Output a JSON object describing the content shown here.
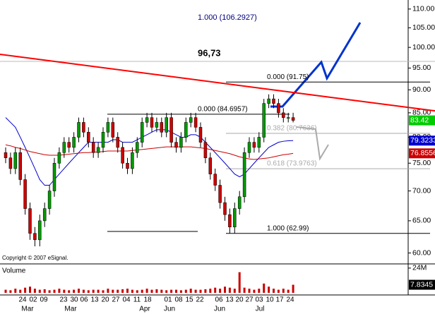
{
  "chart_data": {
    "type": "candlestick",
    "log_scale": true,
    "ylim": [
      58.6,
      112.5
    ],
    "yticks": [
      {
        "value": 110,
        "label": "110.00"
      },
      {
        "value": 105,
        "label": "105.00"
      },
      {
        "value": 100,
        "label": "100.00"
      },
      {
        "value": 95,
        "label": "95.00"
      },
      {
        "value": 90,
        "label": "90.00"
      },
      {
        "value": 85,
        "label": "85.00"
      },
      {
        "value": 80,
        "label": "80.00"
      },
      {
        "value": 75,
        "label": "75.00"
      },
      {
        "value": 70,
        "label": "70.00"
      },
      {
        "value": 65,
        "label": "65.00"
      },
      {
        "value": 60,
        "label": "60.00"
      }
    ],
    "up_color": "#009900",
    "down_color": "#cc0000",
    "open": [
      77,
      76,
      74,
      77,
      72,
      67,
      63,
      62,
      65,
      67,
      70,
      75,
      77,
      79,
      78,
      80,
      83,
      81,
      79,
      77,
      78,
      81,
      83,
      80,
      78,
      75,
      74,
      77,
      79,
      83,
      84,
      82,
      83,
      81,
      84,
      79,
      78,
      80,
      83,
      84,
      82,
      79,
      76,
      73,
      71,
      68,
      66,
      64,
      67,
      69,
      77,
      79,
      78,
      80,
      87,
      88,
      87,
      85,
      84,
      84
    ],
    "high": [
      78,
      77,
      78,
      78,
      73,
      68,
      64,
      66,
      68,
      71,
      76,
      78,
      80,
      80,
      81,
      84,
      84,
      82,
      80,
      79,
      82,
      84,
      84,
      81,
      79,
      76,
      78,
      80,
      84,
      85,
      85,
      84,
      84,
      85,
      85,
      80,
      81,
      84,
      85,
      85,
      83,
      80,
      77,
      74,
      72,
      69,
      67,
      68,
      70,
      78,
      80,
      80,
      81,
      88,
      89,
      89,
      88,
      86,
      85,
      85
    ],
    "low": [
      75,
      73,
      73,
      71,
      66,
      62,
      61,
      61,
      64,
      66,
      69,
      74,
      76,
      77,
      77,
      79,
      80,
      78,
      76,
      76,
      77,
      80,
      79,
      77,
      74,
      73,
      73,
      76,
      78,
      82,
      81,
      81,
      80,
      80,
      78,
      77,
      77,
      79,
      82,
      81,
      78,
      75,
      72,
      70,
      67,
      65,
      63,
      63,
      66,
      68,
      76,
      77,
      77,
      79,
      86,
      86,
      84,
      83,
      83,
      83
    ],
    "close": [
      76,
      74,
      77,
      72,
      67,
      63,
      62,
      65,
      67,
      70,
      75,
      77,
      79,
      78,
      80,
      83,
      81,
      79,
      77,
      78,
      81,
      83,
      80,
      78,
      75,
      74,
      77,
      79,
      83,
      84,
      82,
      83,
      81,
      84,
      79,
      78,
      80,
      83,
      84,
      82,
      79,
      76,
      73,
      71,
      68,
      66,
      64,
      67,
      69,
      77,
      79,
      78,
      80,
      87,
      88,
      87,
      85,
      84,
      84,
      83.42
    ],
    "series": [
      {
        "color": "#0000cc",
        "values": [
          84,
          83,
          82,
          80,
          78,
          76,
          74,
          72,
          71,
          71,
          72,
          73,
          74,
          75,
          76,
          77,
          78,
          79,
          79,
          79,
          79,
          79,
          79.5,
          79.5,
          79,
          79,
          79,
          79.5,
          80,
          80.5,
          81,
          81.5,
          81.5,
          81.5,
          81,
          80.5,
          80,
          80,
          80.5,
          80.5,
          80,
          79,
          78,
          77,
          76,
          75,
          74,
          73,
          72.5,
          73,
          74,
          75,
          76,
          77,
          78,
          78.5,
          79,
          79.2,
          79.3,
          79.3233
        ]
      },
      {
        "color": "#cc0000",
        "values": [
          78.5,
          78.3,
          78,
          77.8,
          77.5,
          77.2,
          77,
          76.8,
          76.6,
          76.5,
          76.5,
          76.5,
          76.6,
          76.7,
          76.8,
          76.9,
          77,
          77,
          77.1,
          77.1,
          77.2,
          77.3,
          77.3,
          77.3,
          77.3,
          77.3,
          77.4,
          77.5,
          77.6,
          77.7,
          77.8,
          77.9,
          78,
          78.1,
          78.1,
          78.1,
          78.1,
          78.1,
          78.1,
          78,
          77.9,
          77.8,
          77.6,
          77.4,
          77.2,
          77,
          76.8,
          76.5,
          76.2,
          76,
          75.8,
          75.7,
          75.8,
          75.9,
          76,
          76.2,
          76.4,
          76.6,
          76.7,
          76.8556
        ]
      }
    ],
    "trendline": {
      "color": "#ff0000",
      "values": [
        98.3,
        85.4
      ]
    },
    "fib_levels": [
      {
        "label": "0.000 (91.75)",
        "value": 91.75,
        "color": "#000000"
      },
      {
        "label": "0.000 (84.6957)",
        "value": 84.6957,
        "color": "#000000"
      },
      {
        "label": "0.382 (80.7636)",
        "value": 80.7636,
        "color": "#aaaaaa"
      },
      {
        "label": "0.618 (73.9763)",
        "value": 73.9763,
        "color": "#aaaaaa"
      },
      {
        "label": "1.000 (62.99)",
        "value": 62.99,
        "color": "#000000"
      }
    ],
    "projection_label": "1.000 (106.2927)",
    "marker_label": "96,73",
    "copyright": "Copyright © 2007 eSignal.",
    "volume": {
      "label": "Volume",
      "color": "#cc0000",
      "ylim": [
        0,
        26
      ],
      "yticks": [
        {
          "value": 24,
          "label": "24M"
        }
      ],
      "values": [
        3,
        2.5,
        4,
        3,
        5,
        6,
        4,
        3,
        3.5,
        2.5,
        3,
        4,
        3,
        2.5,
        3,
        4,
        3,
        2.5,
        3,
        3,
        2.5,
        4,
        3,
        3,
        3.5,
        4,
        3,
        2.5,
        3,
        4,
        3,
        3.5,
        3,
        2.5,
        3,
        3,
        2.5,
        3,
        4,
        3,
        3,
        3.5,
        4,
        5,
        4,
        6,
        5,
        4,
        20,
        5,
        4,
        3,
        4,
        9,
        6,
        4,
        3,
        4,
        3,
        7.8345
      ]
    },
    "x_day_labels": [
      "24",
      "02",
      "09",
      "23",
      "30",
      "06",
      "13",
      "20",
      "27",
      "04",
      "11",
      "18",
      "01",
      "08",
      "15",
      "22",
      "06",
      "13",
      "20",
      "27",
      "03",
      "10",
      "17",
      "24"
    ],
    "x_month_labels": [
      "Mar",
      "Mar",
      "Apr",
      "Jun",
      "Jun",
      "Jul"
    ]
  }
}
